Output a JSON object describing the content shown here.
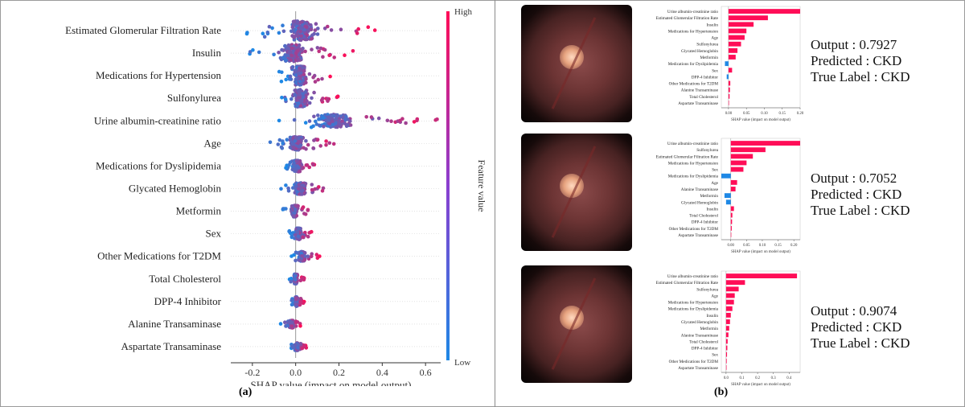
{
  "chart_data": [
    {
      "type": "scatter",
      "subtype": "shap-beeswarm",
      "panel": "(a)",
      "title": "",
      "xlabel": "SHAP value (impact on model output)",
      "xlim": [
        -0.27,
        0.67
      ],
      "xticks": [
        "-0.2",
        "0.0",
        "0.2",
        "0.4",
        "0.6"
      ],
      "xtick_values": [
        -0.2,
        0.0,
        0.2,
        0.4,
        0.6
      ],
      "colorbar": {
        "label": "Feature value",
        "high": "High",
        "low": "Low",
        "color_low": "#1e88e5",
        "color_high": "#ff0d57"
      },
      "features": [
        {
          "name": "Estimated Glomerular Filtration Rate",
          "min": -0.23,
          "max": 0.4,
          "spread": 1.0
        },
        {
          "name": "Insulin",
          "min": -0.23,
          "max": 0.27,
          "spread": 0.9
        },
        {
          "name": "Medications for Hypertension",
          "min": -0.08,
          "max": 0.17,
          "spread": 1.0
        },
        {
          "name": "Sulfonylurea",
          "min": -0.1,
          "max": 0.2,
          "spread": 0.9
        },
        {
          "name": "Urine albumin-creatinine ratio",
          "min": -0.08,
          "max": 0.66,
          "spread": 0.7
        },
        {
          "name": "Age",
          "min": -0.12,
          "max": 0.18,
          "spread": 0.7
        },
        {
          "name": "Medications for Dyslipidemia",
          "min": -0.05,
          "max": 0.09,
          "spread": 0.6
        },
        {
          "name": "Glycated Hemoglobin",
          "min": -0.07,
          "max": 0.16,
          "spread": 0.6
        },
        {
          "name": "Metformin",
          "min": -0.06,
          "max": 0.06,
          "spread": 0.6
        },
        {
          "name": "Sex",
          "min": -0.03,
          "max": 0.08,
          "spread": 0.6
        },
        {
          "name": "Other Medications for T2DM",
          "min": -0.02,
          "max": 0.12,
          "spread": 0.5
        },
        {
          "name": "Total Cholesterol",
          "min": -0.03,
          "max": 0.04,
          "spread": 0.5
        },
        {
          "name": "DPP-4 Inhibitor",
          "min": -0.02,
          "max": 0.04,
          "spread": 0.5
        },
        {
          "name": "Alanine Transaminase",
          "min": -0.07,
          "max": 0.03,
          "spread": 0.4
        },
        {
          "name": "Aspartate Transaminase",
          "min": -0.02,
          "max": 0.05,
          "spread": 0.4
        }
      ]
    },
    {
      "type": "bar",
      "orientation": "horizontal",
      "panel": "(b)-1",
      "xlabel": "SHAP value (impact on model output)",
      "xlim": [
        -0.02,
        0.2
      ],
      "xticks": [
        "0.00",
        "0.05",
        "0.10",
        "0.15",
        "0.20"
      ],
      "xtick_values": [
        0.0,
        0.05,
        0.1,
        0.15,
        0.2
      ],
      "categories": [
        "Urine albumin-creatinine ratio",
        "Estimated Glomerular Filtration Rate",
        "Insulin",
        "Medications for Hypertension",
        "Age",
        "Sulfonylurea",
        "Glycated Hemoglobin",
        "Metformin",
        "Medications for Dyslipidemia",
        "Sex",
        "DPP-4 Inhibitor",
        "Other Medications for T2DM",
        "Alanine Transaminase",
        "Total Cholesterol",
        "Aspartate Transaminase"
      ],
      "values": [
        0.2,
        0.11,
        0.07,
        0.05,
        0.045,
        0.035,
        0.025,
        0.02,
        -0.01,
        0.01,
        -0.005,
        0.005,
        0.004,
        0.003,
        0.0
      ]
    },
    {
      "type": "bar",
      "orientation": "horizontal",
      "panel": "(b)-2",
      "xlabel": "SHAP value (impact on model output)",
      "xlim": [
        -0.03,
        0.22
      ],
      "xticks": [
        "0.00",
        "0.05",
        "0.10",
        "0.15",
        "0.20"
      ],
      "xtick_values": [
        0.0,
        0.05,
        0.1,
        0.15,
        0.2
      ],
      "categories": [
        "Urine albumin-creatinine ratio",
        "Sulfonylurea",
        "Estimated Glomerular Filtration Rate",
        "Medications for Hypertension",
        "Sex",
        "Medications for Dyslipidemia",
        "Age",
        "Alanine Transaminase",
        "Metformin",
        "Glycated Hemoglobin",
        "Insulin",
        "Total Cholesterol",
        "DPP-4 Inhibitor",
        "Other Medications for T2DM",
        "Aspartate Transaminase"
      ],
      "values": [
        0.22,
        0.11,
        0.07,
        0.05,
        0.04,
        -0.03,
        0.02,
        0.015,
        -0.02,
        -0.015,
        0.01,
        0.005,
        0.004,
        0.003,
        0.0
      ]
    },
    {
      "type": "bar",
      "orientation": "horizontal",
      "panel": "(b)-3",
      "xlabel": "SHAP value (impact on model output)",
      "xlim": [
        -0.03,
        0.47
      ],
      "xticks": [
        "0.0",
        "0.1",
        "0.2",
        "0.3",
        "0.4"
      ],
      "xtick_values": [
        0.0,
        0.1,
        0.2,
        0.3,
        0.4
      ],
      "categories": [
        "Urine albumin-creatinine ratio",
        "Estimated Glomerular Filtration Rate",
        "Sulfonylurea",
        "Age",
        "Medications for Hypertension",
        "Medications for Dyslipidemia",
        "Insulin",
        "Glycated Hemoglobin",
        "Metformin",
        "Alanine Transaminase",
        "Total Cholesterol",
        "DPP-4 Inhibitor",
        "Sex",
        "Other Medications for T2DM",
        "Aspartate Transaminase"
      ],
      "values": [
        0.45,
        0.12,
        0.08,
        0.055,
        0.05,
        0.04,
        0.03,
        0.025,
        0.02,
        0.015,
        0.01,
        0.008,
        0.006,
        0.004,
        0.0
      ]
    }
  ],
  "results": [
    {
      "output": "Output : 0.7927",
      "predicted": "Predicted : CKD",
      "true_label": "True Label : CKD"
    },
    {
      "output": "Output : 0.7052",
      "predicted": "Predicted : CKD",
      "true_label": "True Label : CKD"
    },
    {
      "output": "Output : 0.9074",
      "predicted": "Predicted : CKD",
      "true_label": "True Label : CKD"
    }
  ],
  "captions": {
    "a": "(a)",
    "b": "(b)"
  },
  "colors": {
    "positive_bar": "#ff0d57",
    "negative_bar": "#1e88e5",
    "axis": "#333333"
  }
}
